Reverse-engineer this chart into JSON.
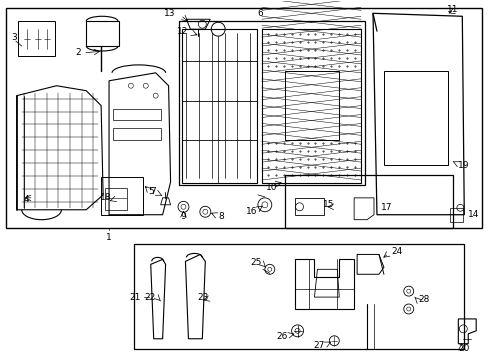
{
  "bg_color": "#ffffff",
  "line_color": "#000000",
  "text_color": "#000000",
  "figsize": [
    4.89,
    3.6
  ],
  "dpi": 100,
  "fs": 6.5,
  "lw": 0.7
}
